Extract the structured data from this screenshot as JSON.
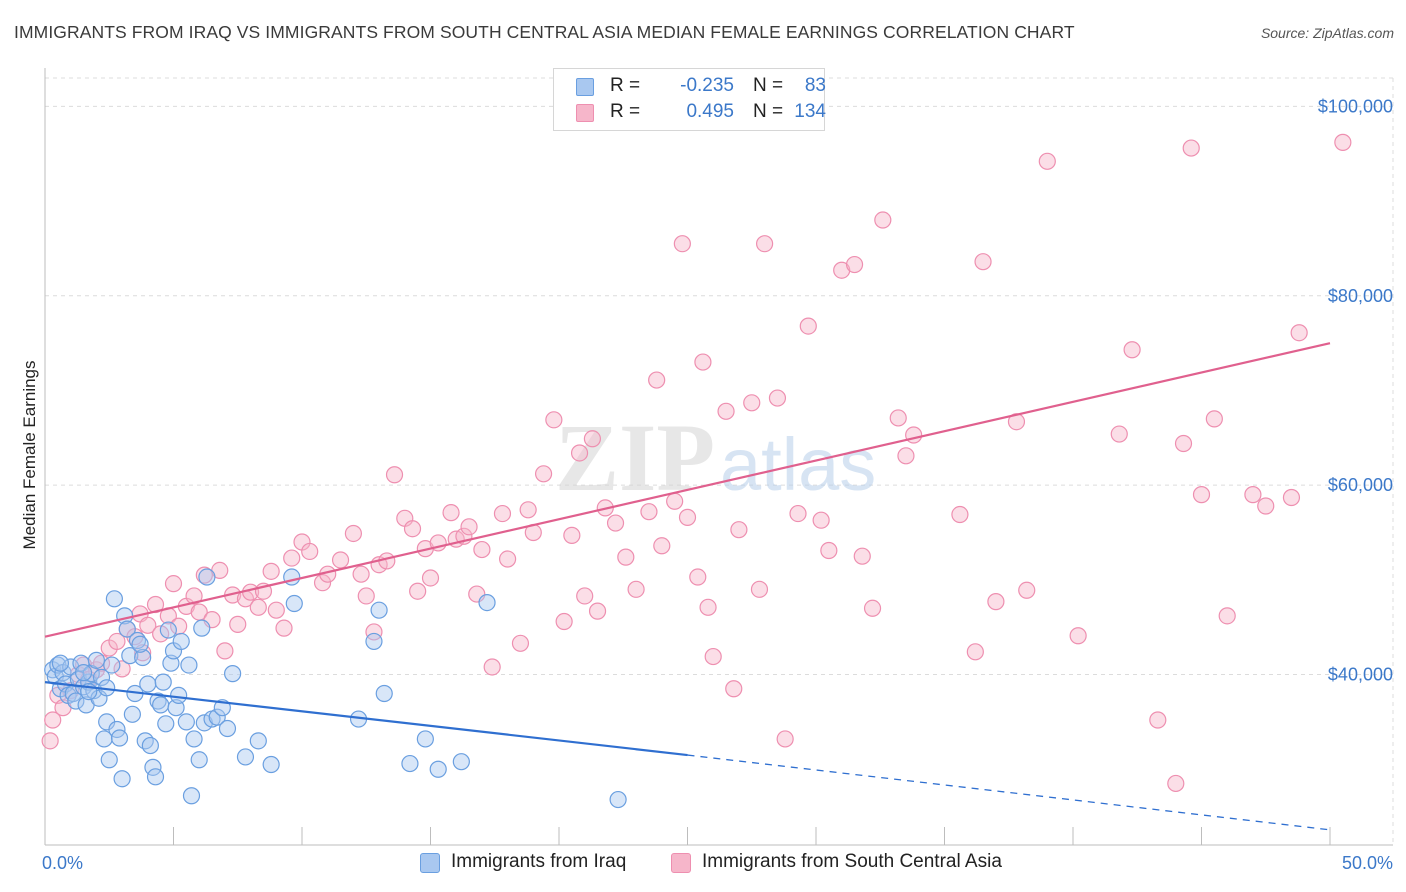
{
  "header": {
    "title": "IMMIGRANTS FROM IRAQ VS IMMIGRANTS FROM SOUTH CENTRAL ASIA MEDIAN FEMALE EARNINGS CORRELATION CHART",
    "source": "Source: ZipAtlas.com"
  },
  "legend": {
    "rows": [
      {
        "r_label": "R =",
        "r_value": "-0.235",
        "n_label": "N =",
        "n_value": "83"
      },
      {
        "r_label": "R =",
        "r_value": "0.495",
        "n_label": "N =",
        "n_value": "134"
      }
    ]
  },
  "bottom_legend": {
    "iraq": "Immigrants from Iraq",
    "sca": "Immigrants from South Central Asia"
  },
  "watermark": {
    "zip": "ZIP",
    "atlas": "atlas"
  },
  "colors": {
    "iraq_fill": "#a9c8f0",
    "iraq_stroke": "#6a9fe0",
    "iraq_line": "#2f6fd0",
    "sca_fill": "#f6b6ca",
    "sca_stroke": "#ee8fb0",
    "sca_line": "#e0608e",
    "tick_text": "#3b78c9",
    "grid": "#dcdcdc"
  },
  "chart_data": {
    "type": "scatter",
    "title": "IMMIGRANTS FROM IRAQ VS IMMIGRANTS FROM SOUTH CENTRAL ASIA MEDIAN FEMALE EARNINGS CORRELATION CHART",
    "ylabel": "Median Female Earnings",
    "xlabel": "",
    "xlim": [
      0,
      50
    ],
    "ylim": [
      22000,
      103000
    ],
    "x_tick_labels": [
      "0.0%",
      "50.0%"
    ],
    "y_ticks": [
      40000,
      60000,
      80000,
      100000
    ],
    "y_tick_labels": [
      "$40,000",
      "$60,000",
      "$80,000",
      "$100,000"
    ],
    "grid": true,
    "series": [
      {
        "name": "Immigrants from Iraq",
        "trend": {
          "x0": 0,
          "y0": 39200,
          "x1": 25,
          "y1": 31500,
          "dash_x1": 50,
          "dash_y1": 23600
        },
        "points": [
          [
            0.3,
            40500
          ],
          [
            0.4,
            39800
          ],
          [
            0.5,
            41000
          ],
          [
            0.6,
            38500
          ],
          [
            0.7,
            40200
          ],
          [
            0.8,
            39000
          ],
          [
            0.9,
            37800
          ],
          [
            1.0,
            40800
          ],
          [
            1.1,
            38000
          ],
          [
            1.2,
            37200
          ],
          [
            1.3,
            39500
          ],
          [
            1.4,
            41200
          ],
          [
            1.5,
            38700
          ],
          [
            1.6,
            36800
          ],
          [
            1.7,
            39200
          ],
          [
            1.8,
            40100
          ],
          [
            1.9,
            38300
          ],
          [
            2.0,
            41500
          ],
          [
            2.1,
            37500
          ],
          [
            2.2,
            39700
          ],
          [
            2.3,
            33200
          ],
          [
            2.4,
            35000
          ],
          [
            2.5,
            31000
          ],
          [
            2.7,
            48000
          ],
          [
            2.8,
            34200
          ],
          [
            2.9,
            33300
          ],
          [
            3.0,
            29000
          ],
          [
            3.1,
            46200
          ],
          [
            3.2,
            44800
          ],
          [
            3.3,
            42000
          ],
          [
            3.4,
            35800
          ],
          [
            3.5,
            38000
          ],
          [
            3.6,
            43600
          ],
          [
            3.8,
            41800
          ],
          [
            3.9,
            33000
          ],
          [
            4.0,
            39000
          ],
          [
            4.1,
            32500
          ],
          [
            4.2,
            30200
          ],
          [
            4.3,
            29200
          ],
          [
            4.4,
            37200
          ],
          [
            4.5,
            36800
          ],
          [
            4.6,
            39200
          ],
          [
            4.7,
            34800
          ],
          [
            4.8,
            44700
          ],
          [
            4.9,
            41200
          ],
          [
            5.0,
            42500
          ],
          [
            5.1,
            36500
          ],
          [
            5.2,
            37800
          ],
          [
            5.3,
            43500
          ],
          [
            5.5,
            35000
          ],
          [
            5.6,
            41000
          ],
          [
            5.7,
            27200
          ],
          [
            5.8,
            33200
          ],
          [
            6.0,
            31000
          ],
          [
            6.1,
            44900
          ],
          [
            6.2,
            34900
          ],
          [
            6.3,
            50300
          ],
          [
            6.5,
            35300
          ],
          [
            6.7,
            35500
          ],
          [
            6.9,
            36500
          ],
          [
            7.1,
            34300
          ],
          [
            7.3,
            40100
          ],
          [
            7.8,
            31300
          ],
          [
            8.3,
            33000
          ],
          [
            8.8,
            30500
          ],
          [
            9.6,
            50300
          ],
          [
            9.7,
            47500
          ],
          [
            12.2,
            35300
          ],
          [
            12.8,
            43500
          ],
          [
            13.0,
            46800
          ],
          [
            13.2,
            38000
          ],
          [
            14.2,
            30600
          ],
          [
            14.8,
            33200
          ],
          [
            15.3,
            30000
          ],
          [
            16.2,
            30800
          ],
          [
            17.2,
            47600
          ],
          [
            22.3,
            26800
          ],
          [
            1.7,
            38200
          ],
          [
            2.6,
            41000
          ],
          [
            3.7,
            43200
          ],
          [
            0.6,
            41200
          ],
          [
            1.5,
            40200
          ],
          [
            2.4,
            38600
          ]
        ]
      },
      {
        "name": "Immigrants from South Central Asia",
        "trend": {
          "x0": 0,
          "y0": 44000,
          "x1": 50,
          "y1": 75000
        },
        "points": [
          [
            0.2,
            33000
          ],
          [
            0.3,
            35200
          ],
          [
            0.5,
            37800
          ],
          [
            0.7,
            36500
          ],
          [
            1.0,
            38300
          ],
          [
            1.3,
            40000
          ],
          [
            1.5,
            41000
          ],
          [
            1.7,
            39500
          ],
          [
            2.0,
            40500
          ],
          [
            2.2,
            41200
          ],
          [
            2.5,
            42800
          ],
          [
            2.8,
            43500
          ],
          [
            3.0,
            40600
          ],
          [
            3.2,
            44800
          ],
          [
            3.5,
            44000
          ],
          [
            3.7,
            46400
          ],
          [
            3.8,
            42300
          ],
          [
            4.0,
            45200
          ],
          [
            4.3,
            47400
          ],
          [
            4.5,
            44300
          ],
          [
            4.8,
            46200
          ],
          [
            5.0,
            49600
          ],
          [
            5.2,
            45100
          ],
          [
            5.5,
            47200
          ],
          [
            5.8,
            48300
          ],
          [
            6.0,
            46600
          ],
          [
            6.2,
            50500
          ],
          [
            6.5,
            45800
          ],
          [
            6.8,
            51000
          ],
          [
            7.0,
            42500
          ],
          [
            7.3,
            48400
          ],
          [
            7.5,
            45300
          ],
          [
            7.8,
            48000
          ],
          [
            8.0,
            48700
          ],
          [
            8.3,
            47100
          ],
          [
            8.5,
            48800
          ],
          [
            8.8,
            50900
          ],
          [
            9.0,
            46800
          ],
          [
            9.3,
            44900
          ],
          [
            9.6,
            52300
          ],
          [
            10.0,
            54000
          ],
          [
            10.3,
            53000
          ],
          [
            10.8,
            49700
          ],
          [
            11.0,
            50600
          ],
          [
            11.5,
            52100
          ],
          [
            12.0,
            54900
          ],
          [
            12.3,
            50600
          ],
          [
            12.5,
            48300
          ],
          [
            12.8,
            44500
          ],
          [
            13.0,
            51600
          ],
          [
            13.3,
            52000
          ],
          [
            13.6,
            61100
          ],
          [
            14.0,
            56500
          ],
          [
            14.3,
            55400
          ],
          [
            14.5,
            48800
          ],
          [
            14.8,
            53300
          ],
          [
            15.0,
            50200
          ],
          [
            15.3,
            53900
          ],
          [
            15.8,
            57100
          ],
          [
            16.0,
            54300
          ],
          [
            16.3,
            54600
          ],
          [
            16.5,
            55600
          ],
          [
            16.8,
            48500
          ],
          [
            17.0,
            53200
          ],
          [
            17.4,
            40800
          ],
          [
            17.8,
            57000
          ],
          [
            18.0,
            52200
          ],
          [
            18.5,
            43300
          ],
          [
            18.8,
            57400
          ],
          [
            19.0,
            55000
          ],
          [
            19.4,
            61200
          ],
          [
            19.8,
            66900
          ],
          [
            20.2,
            45600
          ],
          [
            20.5,
            54700
          ],
          [
            20.8,
            63400
          ],
          [
            21.0,
            48300
          ],
          [
            21.3,
            64900
          ],
          [
            21.5,
            46700
          ],
          [
            21.8,
            57600
          ],
          [
            22.2,
            56000
          ],
          [
            22.6,
            52400
          ],
          [
            23.0,
            49000
          ],
          [
            23.5,
            57200
          ],
          [
            23.8,
            71100
          ],
          [
            24.0,
            53600
          ],
          [
            24.5,
            58300
          ],
          [
            24.8,
            85500
          ],
          [
            25.0,
            56600
          ],
          [
            25.4,
            50300
          ],
          [
            25.8,
            47100
          ],
          [
            26.0,
            41900
          ],
          [
            26.5,
            67800
          ],
          [
            26.8,
            38500
          ],
          [
            27.0,
            55300
          ],
          [
            27.5,
            68700
          ],
          [
            27.8,
            49000
          ],
          [
            28.0,
            85500
          ],
          [
            28.5,
            69200
          ],
          [
            28.8,
            33200
          ],
          [
            29.3,
            57000
          ],
          [
            29.7,
            76800
          ],
          [
            30.2,
            56300
          ],
          [
            30.5,
            53100
          ],
          [
            31.0,
            82700
          ],
          [
            31.5,
            83300
          ],
          [
            31.8,
            52500
          ],
          [
            32.2,
            47000
          ],
          [
            32.6,
            88000
          ],
          [
            33.2,
            67100
          ],
          [
            33.5,
            63100
          ],
          [
            33.8,
            65300
          ],
          [
            35.6,
            56900
          ],
          [
            36.2,
            42400
          ],
          [
            36.5,
            83600
          ],
          [
            37.0,
            47700
          ],
          [
            37.8,
            66700
          ],
          [
            38.2,
            48900
          ],
          [
            39.0,
            94200
          ],
          [
            40.2,
            44100
          ],
          [
            41.8,
            65400
          ],
          [
            42.3,
            74300
          ],
          [
            43.3,
            35200
          ],
          [
            44.0,
            28500
          ],
          [
            44.3,
            64400
          ],
          [
            44.6,
            95600
          ],
          [
            45.0,
            59000
          ],
          [
            46.0,
            46200
          ],
          [
            47.0,
            59000
          ],
          [
            47.5,
            57800
          ],
          [
            48.5,
            58700
          ],
          [
            48.8,
            76100
          ],
          [
            50.5,
            96200
          ],
          [
            45.5,
            67000
          ],
          [
            25.6,
            73000
          ]
        ]
      }
    ]
  }
}
